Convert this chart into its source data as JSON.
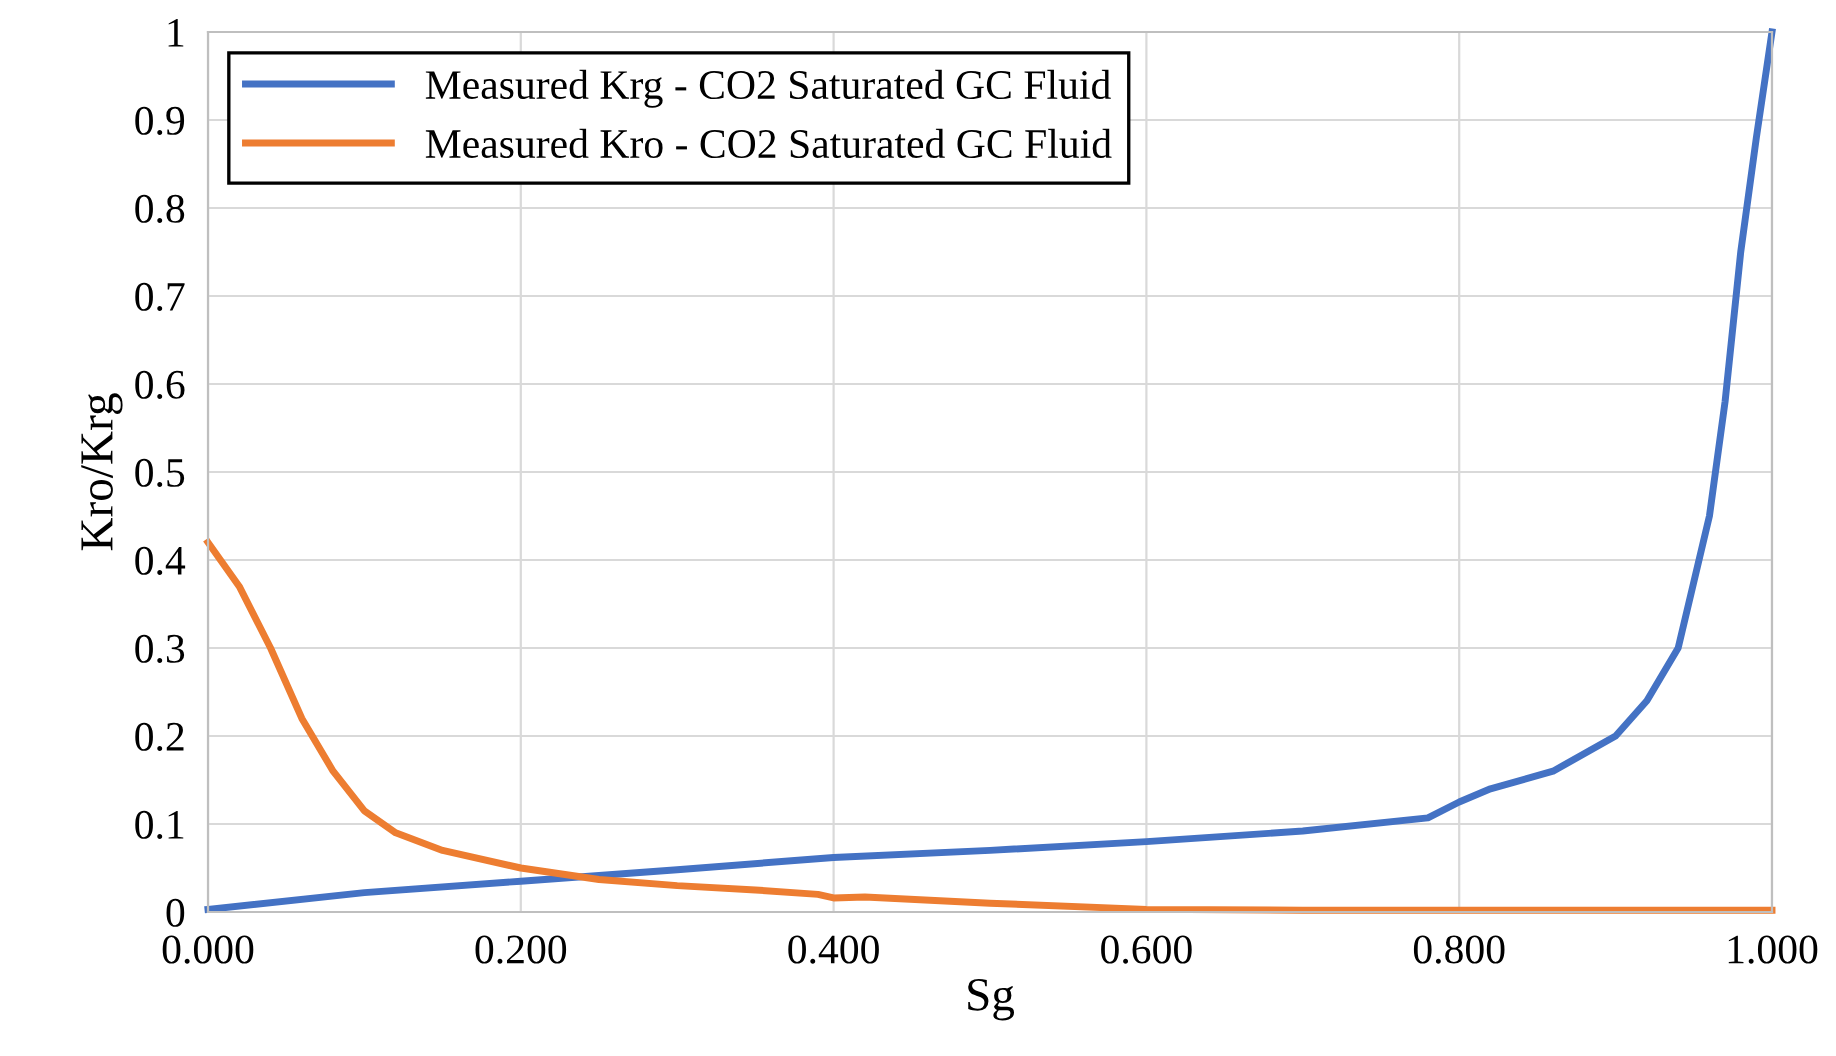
{
  "chart_data": {
    "type": "line",
    "xlabel": "Sg",
    "ylabel": "Kro/Krg",
    "xlim": [
      0,
      1
    ],
    "xticks": [
      {
        "value": 0,
        "label": "0.000"
      },
      {
        "value": 0.2,
        "label": "0.200"
      },
      {
        "value": 0.4,
        "label": "0.400"
      },
      {
        "value": 0.6,
        "label": "0.600"
      },
      {
        "value": 0.8,
        "label": "0.800"
      },
      {
        "value": 1,
        "label": "1.000"
      }
    ],
    "ylim": [
      0,
      1
    ],
    "yticks": [
      0,
      0.1,
      0.2,
      0.3,
      0.4,
      0.5,
      0.6,
      0.7,
      0.8,
      0.9,
      1
    ],
    "grid": true,
    "legend": "top left",
    "marker": "none",
    "line_style": "solid",
    "series": [
      {
        "name": "Measured Krg - CO2 Saturated GC Fluid",
        "color": "#4472c4",
        "x": [
          0,
          0.1,
          0.2,
          0.3,
          0.4,
          0.5,
          0.6,
          0.7,
          0.78,
          0.8,
          0.82,
          0.86,
          0.9,
          0.92,
          0.94,
          0.96,
          0.97,
          0.98,
          0.99,
          1.0
        ],
        "values": [
          0.003,
          0.022,
          0.035,
          0.048,
          0.062,
          0.07,
          0.08,
          0.092,
          0.107,
          0.125,
          0.14,
          0.16,
          0.2,
          0.24,
          0.3,
          0.45,
          0.58,
          0.75,
          0.88,
          1.0
        ]
      },
      {
        "name": "Measured Kro - CO2 Saturated GC Fluid",
        "color": "#ed7d31",
        "x": [
          0,
          0.02,
          0.04,
          0.06,
          0.08,
          0.1,
          0.12,
          0.15,
          0.2,
          0.25,
          0.3,
          0.35,
          0.39,
          0.4,
          0.42,
          0.5,
          0.6,
          0.7,
          0.8,
          1.0
        ],
        "values": [
          0.42,
          0.37,
          0.3,
          0.22,
          0.16,
          0.115,
          0.09,
          0.07,
          0.05,
          0.037,
          0.03,
          0.025,
          0.02,
          0.016,
          0.017,
          0.01,
          0.003,
          0.002,
          0.002,
          0.002
        ]
      }
    ]
  }
}
